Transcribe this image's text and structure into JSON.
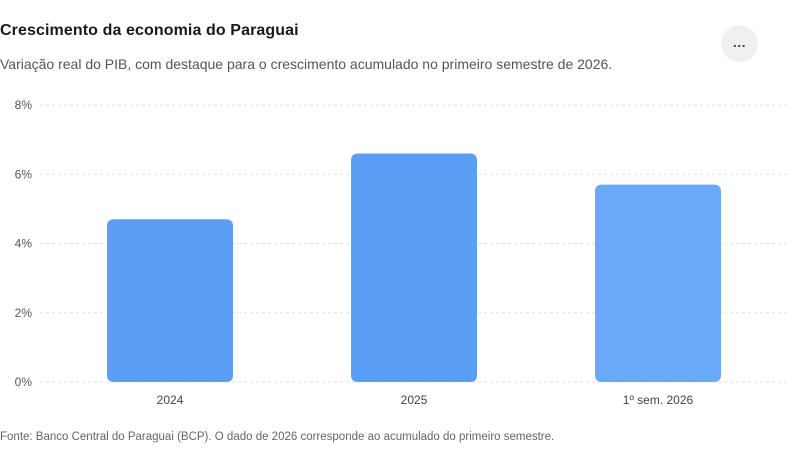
{
  "header": {
    "title": "Crescimento da economia do Paraguai",
    "subtitle": "Variação real do PIB, com destaque para o crescimento acumulado no primeiro semestre de 2026.",
    "more_label": "..."
  },
  "footer": {
    "source": "Fonte: Banco Central do Paraguai (BCP). O dado de 2026 corresponde ao acumulado do primeiro semestre."
  },
  "chart_data": {
    "type": "bar",
    "categories": [
      "2024",
      "2025",
      "1º sem. 2026"
    ],
    "values": [
      4.7,
      6.6,
      5.7
    ],
    "ylim": [
      0,
      8
    ],
    "yticks": [
      0,
      2,
      4,
      6,
      8
    ],
    "ytick_labels": [
      "0%",
      "2%",
      "4%",
      "6%",
      "8%"
    ],
    "xlabel": "",
    "ylabel": "",
    "grid": true,
    "colors": [
      "#5a9ef5",
      "#5a9ef5",
      "#6aa9f7"
    ]
  }
}
